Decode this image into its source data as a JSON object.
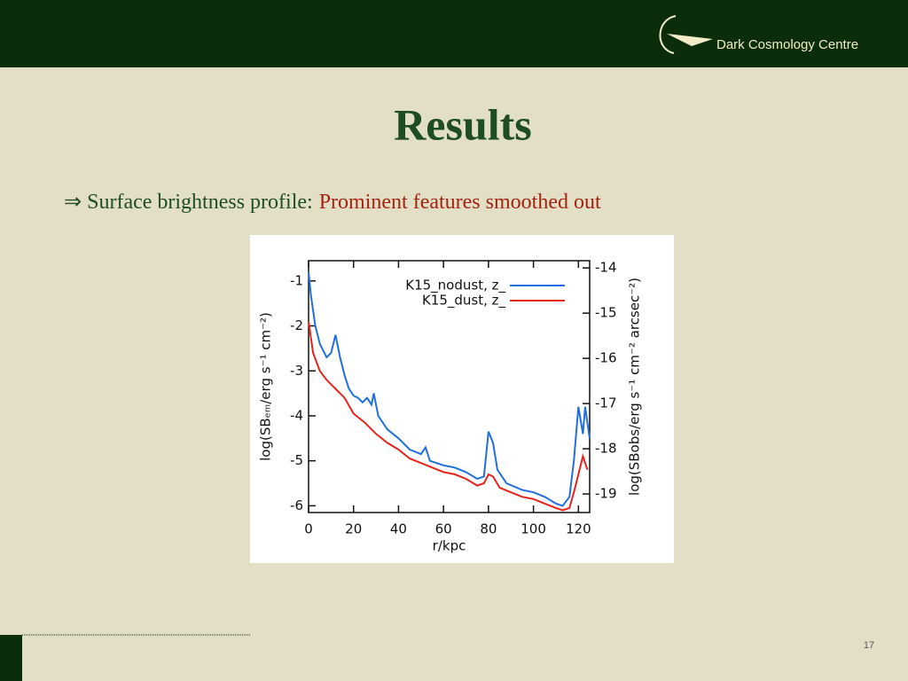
{
  "header": {
    "logo_text": "Dark Cosmology Centre"
  },
  "title": "Results",
  "bullet": {
    "lead": "⇒ Surface brightness profile:",
    "highlight": "Prominent features smoothed out"
  },
  "page_number": "17",
  "chart_data": {
    "type": "line",
    "x_label": "r/kpc",
    "y_label": "log(SBₑₘ/erg s⁻¹ cm⁻²)",
    "y2_label": "log(SBobs/erg s⁻¹ cm⁻² arcsec⁻²)",
    "xlim": [
      0,
      125
    ],
    "xticks": [
      0,
      20,
      40,
      60,
      80,
      100,
      120
    ],
    "ylim": [
      -6.15,
      -0.55
    ],
    "yticks": [
      -6,
      -5,
      -4,
      -3,
      -2,
      -1
    ],
    "y2lim": [
      -19.41,
      -13.84
    ],
    "y2ticks": [
      -19,
      -18,
      -17,
      -16,
      -15,
      -14
    ],
    "legend": "upper right",
    "series": [
      {
        "name": "K15_nodust, z_",
        "color": "#1f6fe0",
        "x": [
          0,
          1,
          3,
          5,
          8,
          10,
          12,
          14,
          16,
          18,
          20,
          22,
          24,
          26,
          28,
          29,
          31,
          35,
          40,
          45,
          50,
          52,
          54,
          60,
          65,
          70,
          75,
          78,
          80,
          82,
          84,
          88,
          95,
          100,
          105,
          110,
          113,
          116,
          118,
          120,
          122,
          123,
          125
        ],
        "values": [
          -0.8,
          -1.3,
          -2.0,
          -2.4,
          -2.7,
          -2.6,
          -2.2,
          -2.7,
          -3.1,
          -3.4,
          -3.55,
          -3.6,
          -3.7,
          -3.6,
          -3.75,
          -3.5,
          -4.0,
          -4.3,
          -4.5,
          -4.75,
          -4.85,
          -4.7,
          -5.0,
          -5.1,
          -5.15,
          -5.25,
          -5.4,
          -5.35,
          -4.35,
          -4.6,
          -5.2,
          -5.5,
          -5.65,
          -5.7,
          -5.8,
          -5.95,
          -6.0,
          -5.8,
          -5.0,
          -3.8,
          -4.4,
          -3.8,
          -4.5
        ]
      },
      {
        "name": "K15_dust, z_",
        "color": "#e8231c",
        "x": [
          0,
          2,
          5,
          8,
          12,
          16,
          20,
          25,
          30,
          35,
          40,
          45,
          50,
          55,
          60,
          65,
          70,
          75,
          78,
          80,
          82,
          85,
          90,
          95,
          100,
          105,
          110,
          113,
          116,
          118,
          120,
          122,
          124
        ],
        "values": [
          -1.9,
          -2.6,
          -3.0,
          -3.2,
          -3.4,
          -3.6,
          -3.95,
          -4.15,
          -4.4,
          -4.6,
          -4.75,
          -4.95,
          -5.05,
          -5.15,
          -5.25,
          -5.3,
          -5.4,
          -5.55,
          -5.5,
          -5.3,
          -5.35,
          -5.6,
          -5.7,
          -5.8,
          -5.85,
          -5.95,
          -6.05,
          -6.1,
          -6.05,
          -5.7,
          -5.3,
          -4.9,
          -5.2
        ]
      }
    ]
  }
}
